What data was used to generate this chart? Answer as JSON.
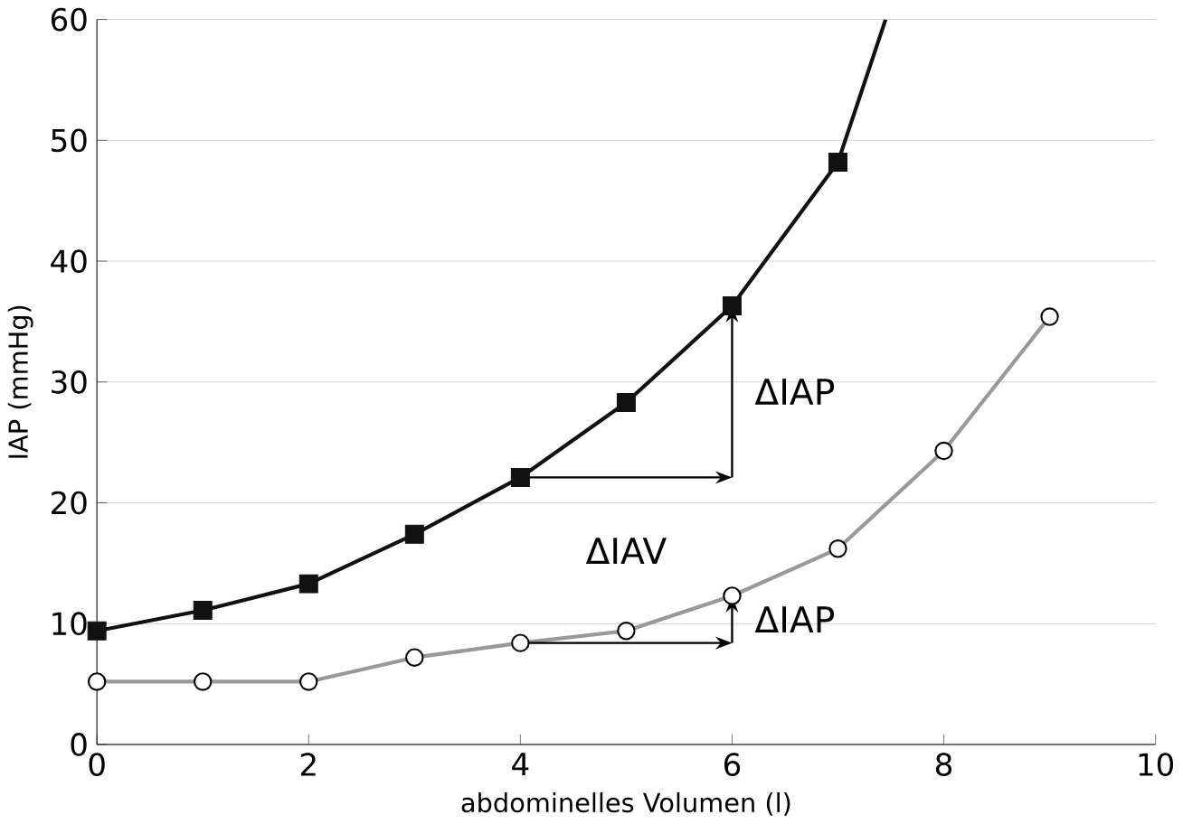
{
  "chart_data": {
    "type": "line",
    "xlabel": "abdominelles Volumen (l)",
    "ylabel": "IAP (mmHg)",
    "xlim": [
      0,
      10
    ],
    "ylim": [
      0,
      60
    ],
    "xticks": [
      0,
      2,
      4,
      6,
      8,
      10
    ],
    "yticks": [
      0,
      10,
      20,
      30,
      40,
      50,
      60
    ],
    "grid": "y",
    "series": [
      {
        "color": "#111111",
        "marker": "none",
        "x": [
          0,
          1,
          2,
          3,
          4,
          5,
          6,
          7,
          7.45
        ],
        "values": [
          9.4,
          11.1,
          13.3,
          17.4,
          22.1,
          28.3,
          36.3,
          48.2,
          60
        ]
      },
      {
        "type": "scatter",
        "color": "#111111",
        "marker": "square",
        "x": [
          0,
          1,
          2,
          3,
          4,
          5,
          6,
          7
        ],
        "values": [
          9.4,
          11.1,
          13.3,
          17.4,
          22.1,
          28.3,
          36.3,
          48.2
        ]
      },
      {
        "color": "#999999",
        "marker": "circle",
        "x": [
          0,
          1,
          2,
          3,
          4,
          5,
          6,
          7,
          8,
          9
        ],
        "values": [
          5.2,
          5.2,
          5.2,
          7.2,
          8.4,
          9.4,
          12.3,
          16.2,
          24.3,
          35.4
        ]
      }
    ],
    "annotations": [
      "ΔIAP",
      "ΔIAV",
      "ΔIAP"
    ]
  }
}
